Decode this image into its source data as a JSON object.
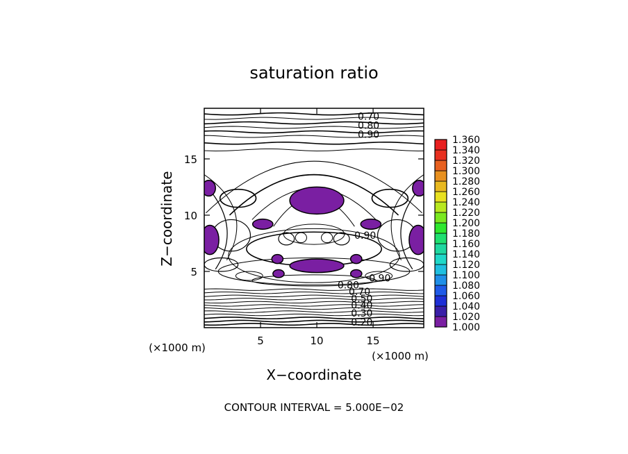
{
  "chart_data": {
    "type": "heatmap",
    "title": "saturation ratio",
    "xlabel": "X−coordinate",
    "ylabel": "Z−coordinate",
    "x_unit_left": "(×1000 m)",
    "x_unit_right": "(×1000 m)",
    "xlim": [
      0,
      19.5
    ],
    "ylim": [
      0,
      19.5
    ],
    "x_ticks": [
      5,
      10,
      15
    ],
    "y_ticks": [
      5,
      10,
      15
    ],
    "x_tick_labels": [
      "5",
      "10",
      "15"
    ],
    "y_tick_labels": [
      "5",
      "10",
      "15"
    ],
    "footer": "CONTOUR INTERVAL = 5.000E−02",
    "contour_labels": [
      {
        "text": "0.70",
        "x": 14.6,
        "z": 18.8
      },
      {
        "text": "0.80",
        "x": 14.6,
        "z": 18.0
      },
      {
        "text": "0.90",
        "x": 14.6,
        "z": 17.2
      },
      {
        "text": "0.90",
        "x": 14.3,
        "z": 8.2
      },
      {
        "text": "0.90",
        "x": 15.6,
        "z": 4.4
      },
      {
        "text": "0.80",
        "x": 12.8,
        "z": 3.8
      },
      {
        "text": "0.70",
        "x": 13.8,
        "z": 3.2
      },
      {
        "text": "0.50",
        "x": 14.0,
        "z": 2.6
      },
      {
        "text": "0.40",
        "x": 14.0,
        "z": 2.0
      },
      {
        "text": "0.30",
        "x": 14.0,
        "z": 1.3
      },
      {
        "text": "0.20",
        "x": 14.0,
        "z": 0.5
      }
    ],
    "colorbar": {
      "levels": [
        "1.000",
        "1.020",
        "1.040",
        "1.060",
        "1.080",
        "1.100",
        "1.120",
        "1.140",
        "1.160",
        "1.180",
        "1.200",
        "1.220",
        "1.240",
        "1.260",
        "1.280",
        "1.300",
        "1.320",
        "1.340",
        "1.360"
      ],
      "colors": [
        "#7a1fa2",
        "#3a1fa8",
        "#1e2fd6",
        "#1f5ae8",
        "#1f8fe8",
        "#1fbfe0",
        "#1fd8c8",
        "#1fd8a0",
        "#1fe070",
        "#2ee82e",
        "#7ae81f",
        "#b8e81f",
        "#e8e01f",
        "#e8b81f",
        "#e8901f",
        "#e8601f",
        "#e8301f",
        "#e81f1f",
        "#f08080"
      ]
    },
    "supersaturated_regions": [
      {
        "cx": 10.0,
        "cz": 11.3,
        "rx": 2.4,
        "rz": 1.2
      },
      {
        "cx": 5.2,
        "cz": 9.2,
        "rx": 0.9,
        "rz": 0.45
      },
      {
        "cx": 14.8,
        "cz": 9.2,
        "rx": 0.9,
        "rz": 0.45
      },
      {
        "cx": 0.4,
        "cz": 12.4,
        "rx": 0.6,
        "rz": 0.7
      },
      {
        "cx": 19.1,
        "cz": 12.4,
        "rx": 0.6,
        "rz": 0.7
      },
      {
        "cx": 0.5,
        "cz": 7.8,
        "rx": 0.8,
        "rz": 1.3
      },
      {
        "cx": 19.0,
        "cz": 7.8,
        "rx": 0.8,
        "rz": 1.3
      },
      {
        "cx": 10.0,
        "cz": 5.5,
        "rx": 2.4,
        "rz": 0.6
      },
      {
        "cx": 6.5,
        "cz": 6.1,
        "rx": 0.5,
        "rz": 0.4
      },
      {
        "cx": 13.5,
        "cz": 6.1,
        "rx": 0.5,
        "rz": 0.4
      },
      {
        "cx": 6.6,
        "cz": 4.8,
        "rx": 0.5,
        "rz": 0.35
      },
      {
        "cx": 13.5,
        "cz": 4.8,
        "rx": 0.5,
        "rz": 0.35
      }
    ]
  }
}
